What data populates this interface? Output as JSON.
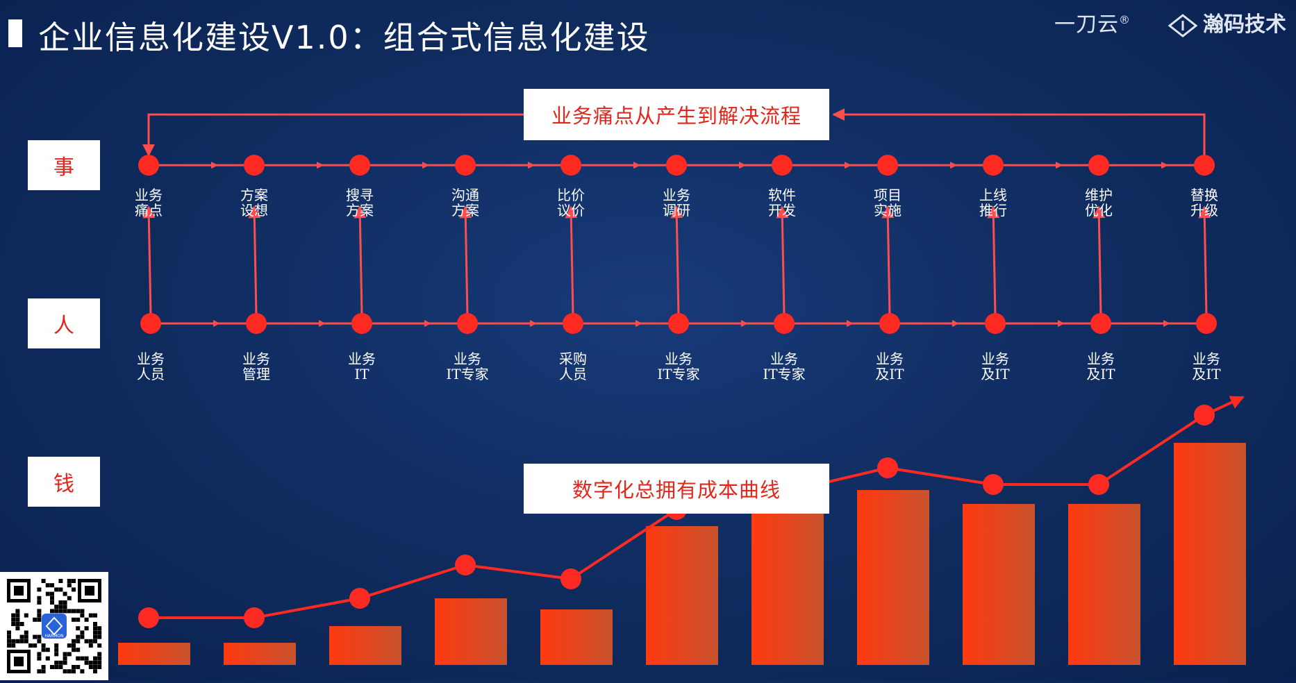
{
  "header": {
    "title": "企业信息化建设V1.0：组合式信息化建设",
    "brand_a": "一刀云",
    "brand_a_mark": "®",
    "brand_b": "瀚码技术"
  },
  "rows": {
    "shi": "事",
    "ren": "人",
    "qian": "钱"
  },
  "captions": {
    "process": "业务痛点从产生到解决流程",
    "cost_curve": "数字化总拥有成本曲线"
  },
  "steps": [
    {
      "task": [
        "业务",
        "痛点"
      ],
      "people": [
        "业务",
        "人员"
      ]
    },
    {
      "task": [
        "方案",
        "设想"
      ],
      "people": [
        "业务",
        "管理"
      ]
    },
    {
      "task": [
        "搜寻",
        "方案"
      ],
      "people": [
        "业务",
        "IT"
      ]
    },
    {
      "task": [
        "沟通",
        "方案"
      ],
      "people": [
        "业务",
        "IT专家"
      ]
    },
    {
      "task": [
        "比价",
        "议价"
      ],
      "people": [
        "采购",
        "人员"
      ]
    },
    {
      "task": [
        "业务",
        "调研"
      ],
      "people": [
        "业务",
        "IT专家"
      ]
    },
    {
      "task": [
        "软件",
        "开发"
      ],
      "people": [
        "业务",
        "IT专家"
      ]
    },
    {
      "task": [
        "项目",
        "实施"
      ],
      "people": [
        "业务",
        "及IT"
      ]
    },
    {
      "task": [
        "上线",
        "推行"
      ],
      "people": [
        "业务",
        "及IT"
      ]
    },
    {
      "task": [
        "维护",
        "优化"
      ],
      "people": [
        "业务",
        "及IT"
      ]
    },
    {
      "task": [
        "替换",
        "升级"
      ],
      "people": [
        "业务",
        "及IT"
      ]
    }
  ],
  "colors": {
    "accent": "#ff2a22",
    "line": "#ff4d4d",
    "bar_start": "#ff3a10",
    "bar_end": "#c8522e"
  },
  "qr_badge": "HARMON",
  "chart_data": {
    "type": "bar",
    "categories": [
      "业务痛点",
      "方案设想",
      "搜寻方案",
      "沟通方案",
      "比价议价",
      "业务调研",
      "软件开发",
      "项目实施",
      "上线推行",
      "维护优化",
      "替换升级"
    ],
    "values": [
      8,
      8,
      14,
      24,
      20,
      50,
      58,
      63,
      58,
      58,
      80
    ],
    "line_values": [
      17,
      17,
      24,
      36,
      31,
      56,
      62,
      71,
      65,
      65,
      90
    ],
    "ylim": [
      0,
      100
    ]
  }
}
